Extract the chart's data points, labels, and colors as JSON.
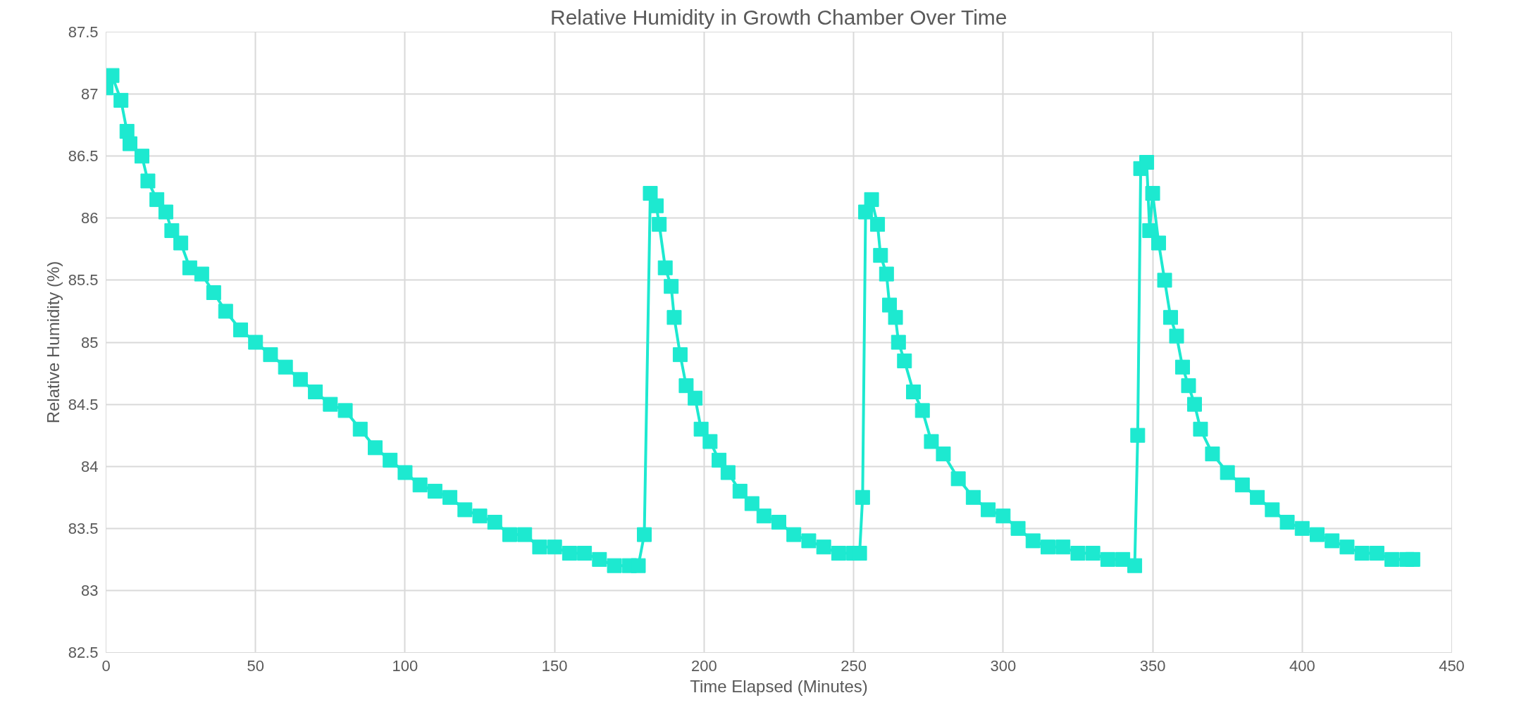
{
  "chart_data": {
    "type": "line",
    "title": "Relative Humidity in Growth Chamber Over Time",
    "xlabel": "Time Elapsed (Minutes)",
    "ylabel": "Relative Humidity (%)",
    "x": [
      0,
      2,
      5,
      7,
      8,
      12,
      14,
      17,
      20,
      22,
      25,
      28,
      32,
      36,
      40,
      45,
      50,
      55,
      60,
      65,
      70,
      75,
      80,
      85,
      90,
      95,
      100,
      105,
      110,
      115,
      120,
      125,
      130,
      135,
      140,
      145,
      150,
      155,
      160,
      165,
      170,
      175,
      178,
      180,
      182,
      184,
      185,
      187,
      189,
      190,
      192,
      194,
      197,
      199,
      202,
      205,
      208,
      212,
      216,
      220,
      225,
      230,
      235,
      240,
      245,
      250,
      252,
      253,
      254,
      256,
      258,
      259,
      261,
      262,
      264,
      265,
      267,
      270,
      273,
      276,
      280,
      285,
      290,
      295,
      300,
      305,
      310,
      315,
      320,
      325,
      330,
      335,
      340,
      344,
      345,
      346,
      348,
      349,
      350,
      352,
      354,
      356,
      358,
      360,
      362,
      364,
      366,
      370,
      375,
      380,
      385,
      390,
      395,
      400,
      405,
      410,
      415,
      420,
      425,
      430,
      435,
      437
    ],
    "series": [
      {
        "color": "#1de9d0",
        "values": [
          87.05,
          87.15,
          86.95,
          86.7,
          86.6,
          86.5,
          86.3,
          86.15,
          86.05,
          85.9,
          85.8,
          85.6,
          85.55,
          85.4,
          85.25,
          85.1,
          85.0,
          84.9,
          84.8,
          84.7,
          84.6,
          84.5,
          84.45,
          84.3,
          84.15,
          84.05,
          83.95,
          83.85,
          83.8,
          83.75,
          83.65,
          83.6,
          83.55,
          83.45,
          83.45,
          83.35,
          83.35,
          83.3,
          83.3,
          83.25,
          83.2,
          83.2,
          83.2,
          83.45,
          86.2,
          86.1,
          85.95,
          85.6,
          85.45,
          85.2,
          84.9,
          84.65,
          84.55,
          84.3,
          84.2,
          84.05,
          83.95,
          83.8,
          83.7,
          83.6,
          83.55,
          83.45,
          83.4,
          83.35,
          83.3,
          83.3,
          83.3,
          83.75,
          86.05,
          86.15,
          85.95,
          85.7,
          85.55,
          85.3,
          85.2,
          85.0,
          84.85,
          84.6,
          84.45,
          84.2,
          84.1,
          83.9,
          83.75,
          83.65,
          83.6,
          83.5,
          83.4,
          83.35,
          83.35,
          83.3,
          83.3,
          83.25,
          83.25,
          83.2,
          84.25,
          86.4,
          86.45,
          85.9,
          86.2,
          85.8,
          85.5,
          85.2,
          85.05,
          84.8,
          84.65,
          84.5,
          84.3,
          84.1,
          83.95,
          83.85,
          83.75,
          83.65,
          83.55,
          83.5,
          83.45,
          83.4,
          83.35,
          83.3,
          83.3,
          83.25,
          83.25,
          83.25
        ]
      }
    ],
    "xlim": [
      0,
      450
    ],
    "xticks": [
      0,
      50,
      100,
      150,
      200,
      250,
      300,
      350,
      400,
      450
    ],
    "ylim": [
      82.5,
      87.5
    ],
    "yticks": [
      82.5,
      83,
      83.5,
      84,
      84.5,
      85,
      85.5,
      86,
      86.5,
      87,
      87.5
    ],
    "grid": true,
    "marker": "square",
    "line_style": "solid"
  }
}
